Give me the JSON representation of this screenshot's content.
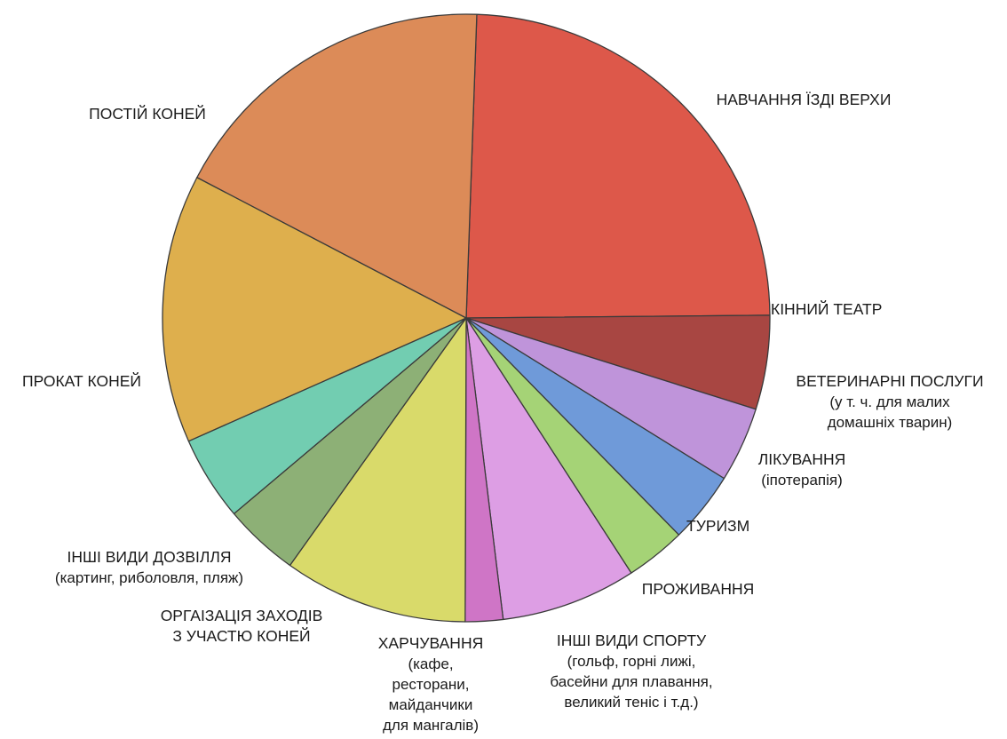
{
  "chart_data": {
    "type": "pie",
    "title": "",
    "start_angle_deg": 88,
    "direction": "clockwise",
    "slices": [
      {
        "name": "НАВЧАННЯ ЇЗДІ ВЕРХИ",
        "note": "",
        "value": 24.3,
        "color": "#dd584a"
      },
      {
        "name": "КІННИЙ ТЕАТР",
        "note": "",
        "value": 5.0,
        "color": "#a84642"
      },
      {
        "name": "ВЕТЕРИНАРНІ ПОСЛУГИ",
        "note": "(у т. ч. для малих|домашніх тварин)",
        "value": 4.0,
        "color": "#bf94da"
      },
      {
        "name": "ЛІКУВАННЯ",
        "note": "(іпотерапія)",
        "value": 3.8,
        "color": "#6f9ad9"
      },
      {
        "name": "ТУРИЗМ",
        "note": "",
        "value": 3.2,
        "color": "#a5d376"
      },
      {
        "name": "ПРОЖИВАННЯ",
        "note": "",
        "value": 7.2,
        "color": "#dd9ee4"
      },
      {
        "name": "ІНШІ ВИДИ СПОРТУ",
        "note": "(гольф, горні лижі,|басейни для плавання,|великий теніс і т.д.)",
        "value": 2.0,
        "color": "#cf75c6"
      },
      {
        "name": "ХАРЧУВАННЯ",
        "note": "(кафе,|ресторани,|майданчики|для мангалів)",
        "value": 9.8,
        "color": "#d9da6a"
      },
      {
        "name": "ОРГАІЗАЦІЯ ЗАХОДІВ|З УЧАСТЮ КОНЕЙ",
        "note": "",
        "value": 4.0,
        "color": "#8db076"
      },
      {
        "name": "ІНШІ ВИДИ ДОЗВІЛЛЯ",
        "note": "(картинг, риболовля, пляж)",
        "value": 4.5,
        "color": "#72cdb1"
      },
      {
        "name": "ПРОКАТ КОНЕЙ",
        "note": "",
        "value": 14.3,
        "color": "#deaf4d"
      },
      {
        "name": "ПОСТІЙ КОНЕЙ",
        "note": "",
        "value": 17.9,
        "color": "#dc8b58"
      }
    ]
  }
}
